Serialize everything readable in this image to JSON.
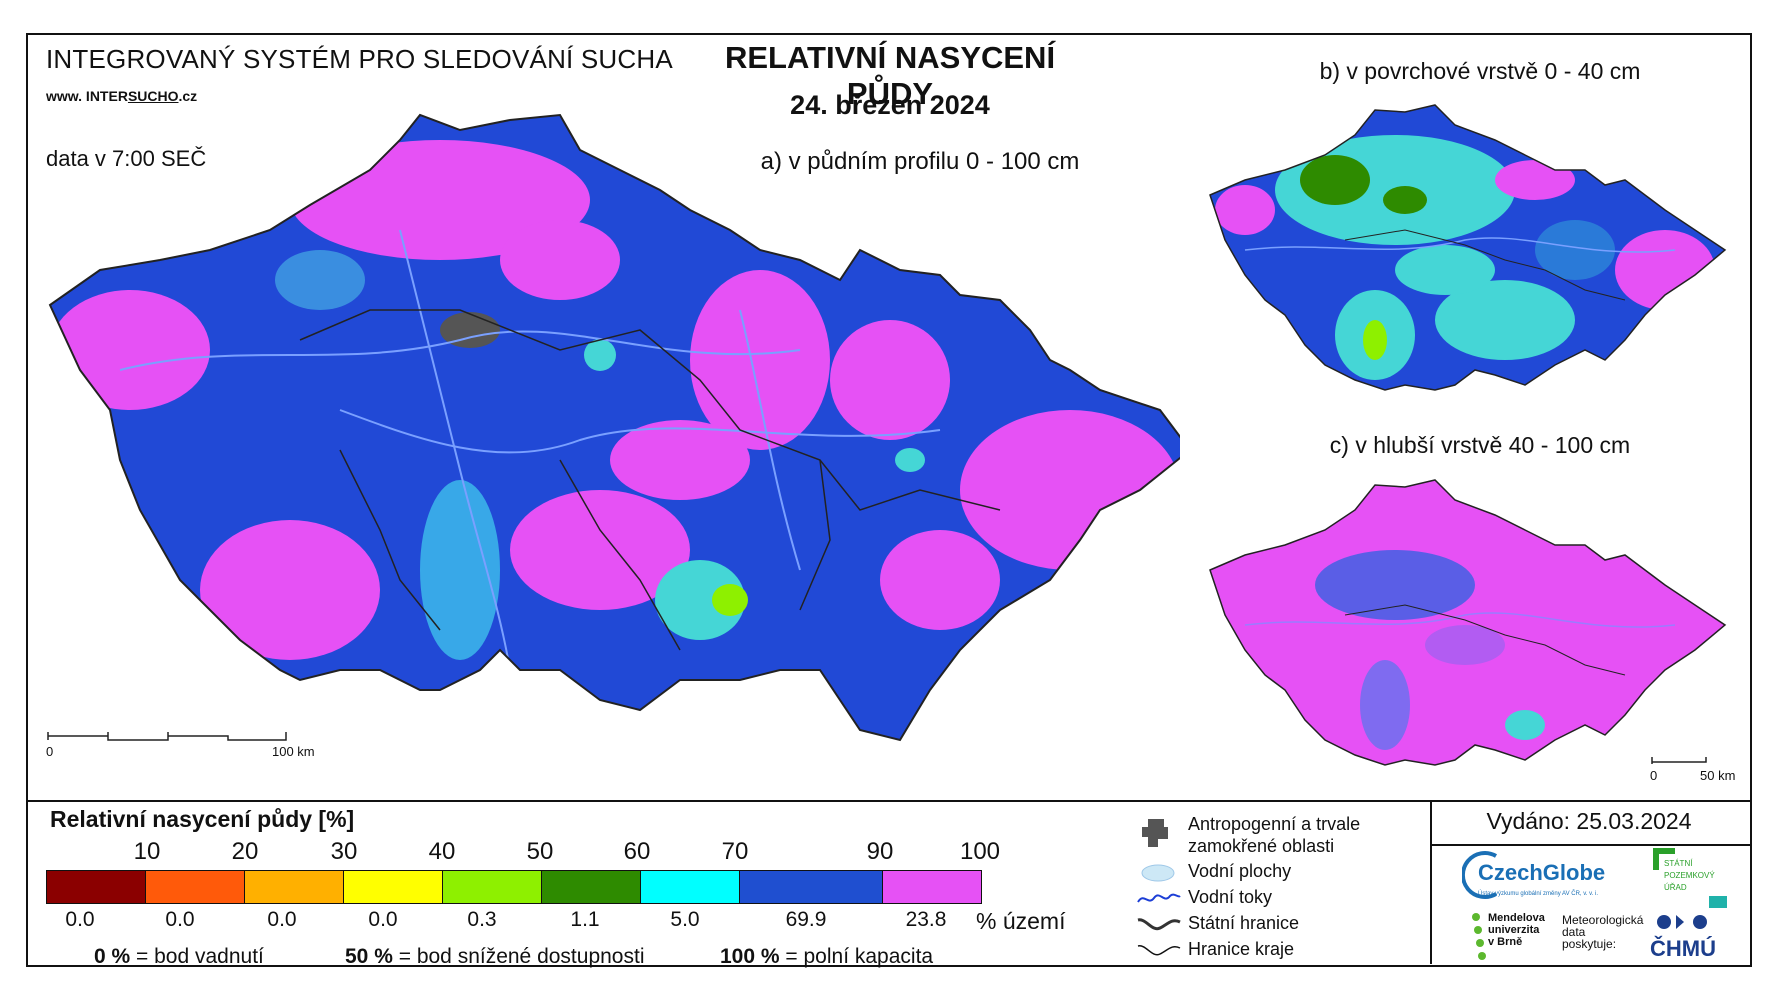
{
  "header": {
    "system_name": "INTEGROVANÝ SYSTÉM PRO SLEDOVÁNÍ SUCHA",
    "web_prefix": "www. INTER",
    "web_sucho": "SUCHO",
    "web_suffix": ".cz",
    "data_time": "data v 7:00 SEČ",
    "title": "RELATIVNÍ NASYCENÍ PŮDY",
    "date": "24. březen 2024"
  },
  "maps": {
    "a_label": "a) v půdním profilu 0 - 100 cm",
    "b_label": "b) v povrchové vrstvě 0 - 40 cm",
    "c_label": "c) v hlubší vrstvě 40 - 100 cm",
    "scale_main": {
      "start": "0",
      "end": "100 km"
    },
    "scale_small": {
      "start": "0",
      "end": "50 km"
    }
  },
  "legend": {
    "title": "Relativní nasycení půdy [%]",
    "ticks": [
      "10",
      "20",
      "30",
      "40",
      "50",
      "60",
      "70",
      "90",
      "100"
    ],
    "classes": [
      {
        "color": "#8b0000",
        "share": "0.0"
      },
      {
        "color": "#ff5a0a",
        "share": "0.0"
      },
      {
        "color": "#ffb000",
        "share": "0.0"
      },
      {
        "color": "#ffff00",
        "share": "0.0"
      },
      {
        "color": "#8ef000",
        "share": "0.3"
      },
      {
        "color": "#2e8b00",
        "share": "1.1"
      },
      {
        "color": "#00ffff",
        "share": "5.0"
      },
      {
        "color": "#1f4fd0",
        "share": "69.9"
      },
      {
        "color": "#e651f5",
        "share": "23.8"
      }
    ],
    "share_unit": "% území",
    "note_0_value": "0 %",
    "note_0_text": "= bod vadnutí",
    "note_50_value": "50 %",
    "note_50_text": "= bod snížené dostupnosti",
    "note_100_value": "100 %",
    "note_100_text": "= polní kapacita"
  },
  "symbols": {
    "anthropogenic": "Antropogenní a trvale zamokřené oblasti",
    "water_bodies": "Vodní plochy",
    "water_courses": "Vodní toky",
    "state_border": "Státní hranice",
    "region_border": "Hranice kraje"
  },
  "issued": "Vydáno: 25.03.2024",
  "logos": {
    "czechglobe": "CzechGlobe",
    "czechglobe_sub": "Ústav výzkumu globální změny AV ČR, v. v. i.",
    "spu_line1": "STÁTNÍ",
    "spu_line2": "POZEMKOVÝ",
    "spu_line3": "ÚŘAD",
    "mendel_line1": "Mendelova",
    "mendel_line2": "univerzita",
    "mendel_line3": "v Brně",
    "meteo_line1": "Meteorologická",
    "meteo_line2": "data",
    "meteo_line3": "poskytuje:",
    "chmu": "ČHMÚ"
  }
}
